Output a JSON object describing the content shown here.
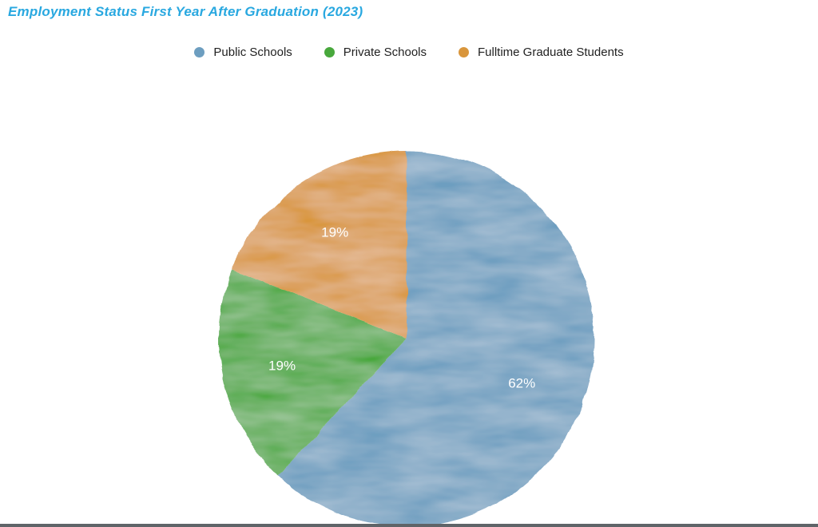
{
  "chart_data": {
    "type": "pie",
    "title": "Employment Status First Year After Graduation (2023)",
    "slices": [
      {
        "name": "Public Schools",
        "value": 62,
        "label": "62%",
        "color": "#6d9ec0"
      },
      {
        "name": "Private Schools",
        "value": 19,
        "label": "19%",
        "color": "#48a83c"
      },
      {
        "name": "Fulltime Graduate Students",
        "value": 19,
        "label": "19%",
        "color": "#d9963c"
      }
    ],
    "start_angle_deg": 0,
    "direction": "clockwise",
    "legend_position": "top"
  }
}
